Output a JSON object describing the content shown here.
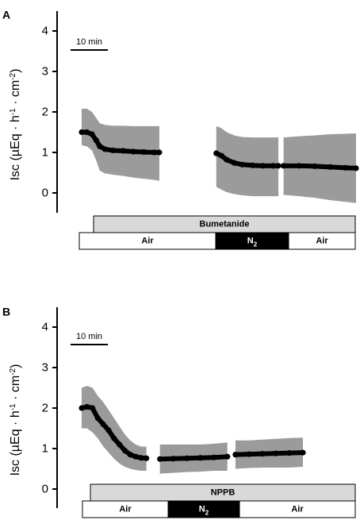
{
  "colors": {
    "band": "#9b9b9b",
    "line": "#000000",
    "treatment_bar": "#d9d9d9",
    "dark_segment": "#000000",
    "light_segment": "#ffffff"
  },
  "chart_data": [
    {
      "type": "line",
      "panel": "A",
      "ylabel": "Isc (µEq · h⁻¹ · cm⁻²)",
      "ylabel_parts": {
        "pre": "Isc (µEq · h",
        "e1": "-1",
        "mid": " · cm",
        "e2": "-2",
        "post": ")"
      },
      "ylim": [
        -0.5,
        4.5
      ],
      "yticks": [
        0,
        1,
        2,
        3,
        4
      ],
      "scale_bar_label": "10 min",
      "treatment": "Bumetanide",
      "conditions": [
        {
          "label": "Air",
          "sub": "",
          "dark": false
        },
        {
          "label": "N",
          "sub": "2",
          "dark": true
        },
        {
          "label": "Air",
          "sub": "",
          "dark": false
        }
      ],
      "series": [
        {
          "values": [
            [
              0.0,
              1.5
            ],
            [
              1.0,
              1.5
            ],
            [
              2.0,
              1.45
            ],
            [
              2.8,
              1.3
            ],
            [
              3.5,
              1.15
            ],
            [
              4.5,
              1.08
            ],
            [
              6.0,
              1.05
            ],
            [
              8.0,
              1.04
            ],
            [
              10.0,
              1.02
            ],
            [
              12.0,
              1.01
            ],
            [
              14.0,
              1.0
            ],
            [
              15.0,
              1.0
            ]
          ],
          "upper": [
            [
              0.0,
              2.08
            ],
            [
              1.0,
              2.08
            ],
            [
              2.0,
              2.0
            ],
            [
              2.8,
              1.85
            ],
            [
              3.5,
              1.72
            ],
            [
              4.5,
              1.68
            ],
            [
              6.0,
              1.66
            ],
            [
              8.0,
              1.66
            ],
            [
              10.0,
              1.65
            ],
            [
              12.0,
              1.65
            ],
            [
              14.0,
              1.65
            ],
            [
              15.0,
              1.65
            ]
          ],
          "lower": [
            [
              0.0,
              1.18
            ],
            [
              1.0,
              1.15
            ],
            [
              2.0,
              1.05
            ],
            [
              2.8,
              0.8
            ],
            [
              3.5,
              0.55
            ],
            [
              4.5,
              0.48
            ],
            [
              6.0,
              0.45
            ],
            [
              8.0,
              0.42
            ],
            [
              10.0,
              0.38
            ],
            [
              12.0,
              0.35
            ],
            [
              14.0,
              0.32
            ],
            [
              15.0,
              0.3
            ]
          ]
        },
        {
          "values": [
            [
              26.0,
              0.98
            ],
            [
              27.0,
              0.92
            ],
            [
              28.0,
              0.82
            ],
            [
              29.5,
              0.74
            ],
            [
              31.0,
              0.7
            ],
            [
              33.0,
              0.68
            ],
            [
              35.0,
              0.67
            ],
            [
              37.0,
              0.67
            ],
            [
              38.0,
              0.67
            ]
          ],
          "upper": [
            [
              26.0,
              1.65
            ],
            [
              27.0,
              1.6
            ],
            [
              28.0,
              1.5
            ],
            [
              29.5,
              1.42
            ],
            [
              31.0,
              1.38
            ],
            [
              33.0,
              1.37
            ],
            [
              35.0,
              1.37
            ],
            [
              37.0,
              1.37
            ],
            [
              38.0,
              1.37
            ]
          ],
          "lower": [
            [
              26.0,
              0.15
            ],
            [
              27.0,
              0.08
            ],
            [
              28.0,
              0.02
            ],
            [
              29.5,
              -0.03
            ],
            [
              31.0,
              -0.06
            ],
            [
              33.0,
              -0.08
            ],
            [
              35.0,
              -0.08
            ],
            [
              37.0,
              -0.08
            ],
            [
              38.0,
              -0.08
            ]
          ]
        },
        {
          "values": [
            [
              39.0,
              0.67
            ],
            [
              42.0,
              0.67
            ],
            [
              45.0,
              0.66
            ],
            [
              48.0,
              0.64
            ],
            [
              51.0,
              0.62
            ],
            [
              53.0,
              0.61
            ]
          ],
          "upper": [
            [
              39.0,
              1.37
            ],
            [
              42.0,
              1.4
            ],
            [
              45.0,
              1.42
            ],
            [
              48.0,
              1.45
            ],
            [
              51.0,
              1.46
            ],
            [
              53.0,
              1.47
            ]
          ],
          "lower": [
            [
              39.0,
              -0.05
            ],
            [
              42.0,
              -0.08
            ],
            [
              45.0,
              -0.12
            ],
            [
              48.0,
              -0.18
            ],
            [
              51.0,
              -0.22
            ],
            [
              53.0,
              -0.25
            ]
          ]
        }
      ]
    },
    {
      "type": "line",
      "panel": "B",
      "ylabel": "Isc (µEq · h⁻¹ · cm⁻²)",
      "ylabel_parts": {
        "pre": "Isc (µEq · h",
        "e1": "-1",
        "mid": " · cm",
        "e2": "-2",
        "post": ")"
      },
      "ylim": [
        -0.5,
        4.5
      ],
      "yticks": [
        0,
        1,
        2,
        3,
        4
      ],
      "scale_bar_label": "10 min",
      "treatment": "NPPB",
      "conditions": [
        {
          "label": "Air",
          "sub": "",
          "dark": false
        },
        {
          "label": "N",
          "sub": "2",
          "dark": true
        },
        {
          "label": "Air",
          "sub": "",
          "dark": false
        }
      ],
      "series": [
        {
          "values": [
            [
              0.0,
              2.0
            ],
            [
              1.0,
              2.03
            ],
            [
              2.0,
              2.0
            ],
            [
              3.0,
              1.75
            ],
            [
              4.0,
              1.6
            ],
            [
              5.0,
              1.45
            ],
            [
              6.0,
              1.25
            ],
            [
              7.0,
              1.1
            ],
            [
              8.0,
              0.95
            ],
            [
              9.0,
              0.85
            ],
            [
              10.0,
              0.8
            ],
            [
              11.0,
              0.77
            ],
            [
              12.0,
              0.76
            ]
          ],
          "upper": [
            [
              0.0,
              2.5
            ],
            [
              1.0,
              2.55
            ],
            [
              2.0,
              2.5
            ],
            [
              3.0,
              2.3
            ],
            [
              4.0,
              2.15
            ],
            [
              5.0,
              1.95
            ],
            [
              6.0,
              1.75
            ],
            [
              7.0,
              1.55
            ],
            [
              8.0,
              1.35
            ],
            [
              9.0,
              1.2
            ],
            [
              10.0,
              1.1
            ],
            [
              11.0,
              1.05
            ],
            [
              12.0,
              1.05
            ]
          ],
          "lower": [
            [
              0.0,
              1.5
            ],
            [
              1.0,
              1.5
            ],
            [
              2.0,
              1.4
            ],
            [
              3.0,
              1.25
            ],
            [
              4.0,
              1.05
            ],
            [
              5.0,
              0.9
            ],
            [
              6.0,
              0.75
            ],
            [
              7.0,
              0.63
            ],
            [
              8.0,
              0.55
            ],
            [
              9.0,
              0.5
            ],
            [
              10.0,
              0.47
            ],
            [
              11.0,
              0.45
            ],
            [
              12.0,
              0.45
            ]
          ]
        },
        {
          "values": [
            [
              14.5,
              0.74
            ],
            [
              17.0,
              0.75
            ],
            [
              19.5,
              0.76
            ],
            [
              22.0,
              0.77
            ],
            [
              24.5,
              0.78
            ],
            [
              27.0,
              0.8
            ]
          ],
          "upper": [
            [
              14.5,
              1.1
            ],
            [
              17.0,
              1.1
            ],
            [
              19.5,
              1.1
            ],
            [
              22.0,
              1.1
            ],
            [
              24.5,
              1.12
            ],
            [
              27.0,
              1.15
            ]
          ],
          "lower": [
            [
              14.5,
              0.38
            ],
            [
              17.0,
              0.4
            ],
            [
              19.5,
              0.42
            ],
            [
              22.0,
              0.43
            ],
            [
              24.5,
              0.45
            ],
            [
              27.0,
              0.45
            ]
          ]
        },
        {
          "values": [
            [
              28.5,
              0.85
            ],
            [
              31.0,
              0.86
            ],
            [
              33.5,
              0.87
            ],
            [
              36.0,
              0.88
            ],
            [
              38.5,
              0.89
            ],
            [
              41.0,
              0.9
            ]
          ],
          "upper": [
            [
              28.5,
              1.2
            ],
            [
              31.0,
              1.2
            ],
            [
              33.5,
              1.22
            ],
            [
              36.0,
              1.24
            ],
            [
              38.5,
              1.26
            ],
            [
              41.0,
              1.27
            ]
          ],
          "lower": [
            [
              28.5,
              0.5
            ],
            [
              31.0,
              0.52
            ],
            [
              33.5,
              0.53
            ],
            [
              36.0,
              0.53
            ],
            [
              38.5,
              0.53
            ],
            [
              41.0,
              0.55
            ]
          ]
        }
      ]
    }
  ]
}
